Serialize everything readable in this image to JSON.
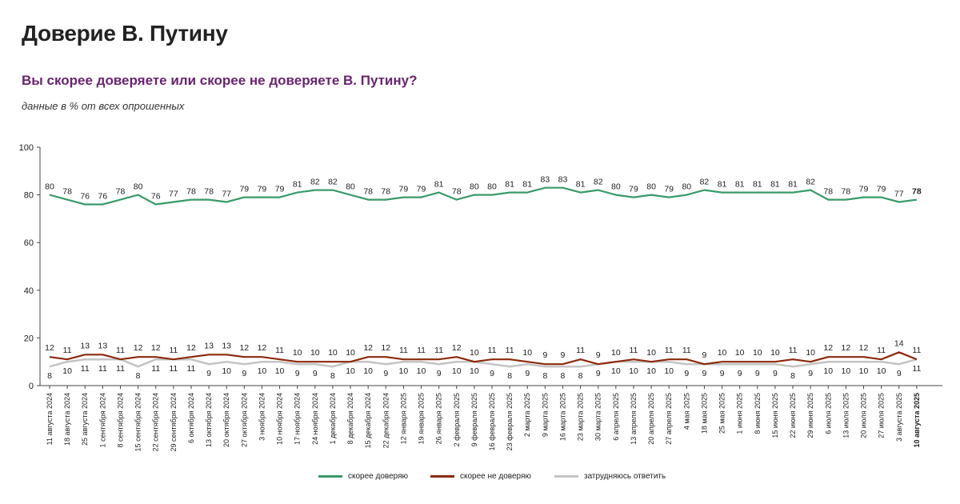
{
  "header": {
    "title": "Доверие В. Путину",
    "question": "Вы скорее доверяете или скорее не доверяете В. Путину?",
    "note": "данные в % от всех опрошенных"
  },
  "colors": {
    "trust": "#3a9a6a",
    "distrust": "#8b2a0a",
    "hard": "#c4c4c4"
  },
  "legend": [
    {
      "label": "скорее доверяю",
      "color": "#3a9a6a"
    },
    {
      "label": "скорее не доверяю",
      "color": "#8b2a0a"
    },
    {
      "label": "затрудняюсь ответить",
      "color": "#c4c4c4"
    }
  ],
  "chart_data": {
    "type": "line",
    "ylim": [
      0,
      100
    ],
    "yticks": [
      0,
      20,
      40,
      60,
      80,
      100
    ],
    "grid": false,
    "legend_position": "bottom",
    "categories": [
      "11 августа 2024",
      "18 августа 2024",
      "25 августа 2024",
      "1 сентября 2024",
      "8 сентября 2024",
      "15 сентября 2024",
      "22 сентября 2024",
      "29 сентября 2024",
      "6 октября 2024",
      "13 октября 2024",
      "20 октября 2024",
      "27 октября 2024",
      "3 ноября 2024",
      "10 ноября 2024",
      "17 ноября 2024",
      "24 ноября 2024",
      "1 декабря 2024",
      "8 декабря 2024",
      "15 декабря 2024",
      "22 декабря 2024",
      "12 января 2025",
      "19 января 2025",
      "26 января 2025",
      "2 февраля 2025",
      "9 февраля 2025",
      "16 февраля 2025",
      "23 февраля 2025",
      "2 марта 2025",
      "9 марта 2025",
      "16 марта 2025",
      "23 марта 2025",
      "30 марта 2025",
      "6 апреля 2025",
      "13 апреля 2025",
      "20 апреля 2025",
      "27 апреля 2025",
      "4 мая 2025",
      "18 мая 2025",
      "25 мая 2025",
      "1 июня 2025",
      "8 июня 2025",
      "15 июня 2025",
      "22 июня 2025",
      "29 июня 2025",
      "6 июля 2025",
      "13 июля 2025",
      "20 июля 2025",
      "27 июля 2025",
      "3 августа 2025",
      "10 августа 2025"
    ],
    "series": [
      {
        "name": "скорее доверяю",
        "values": [
          80,
          78,
          76,
          76,
          78,
          80,
          76,
          77,
          78,
          78,
          77,
          79,
          79,
          79,
          81,
          82,
          82,
          80,
          78,
          78,
          79,
          79,
          81,
          78,
          80,
          80,
          81,
          81,
          83,
          83,
          81,
          82,
          80,
          79,
          80,
          79,
          80,
          82,
          81,
          81,
          81,
          81,
          81,
          82,
          78,
          78,
          79,
          79,
          77,
          78
        ]
      },
      {
        "name": "скорее не доверяю",
        "values": [
          12,
          11,
          13,
          13,
          11,
          12,
          12,
          11,
          12,
          13,
          13,
          12,
          12,
          11,
          10,
          10,
          10,
          10,
          12,
          12,
          11,
          11,
          11,
          12,
          10,
          11,
          11,
          10,
          9,
          9,
          11,
          9,
          10,
          11,
          10,
          11,
          11,
          9,
          10,
          10,
          10,
          10,
          11,
          10,
          12,
          12,
          12,
          11,
          14,
          11
        ]
      },
      {
        "name": "затрудняюсь ответить",
        "values": [
          8,
          10,
          11,
          11,
          11,
          8,
          11,
          11,
          11,
          9,
          10,
          9,
          10,
          10,
          9,
          9,
          8,
          10,
          10,
          9,
          10,
          10,
          9,
          10,
          10,
          9,
          8,
          9,
          8,
          8,
          8,
          9,
          10,
          10,
          10,
          10,
          9,
          9,
          9,
          9,
          9,
          9,
          8,
          9,
          10,
          10,
          10,
          10,
          9,
          11
        ]
      }
    ]
  }
}
